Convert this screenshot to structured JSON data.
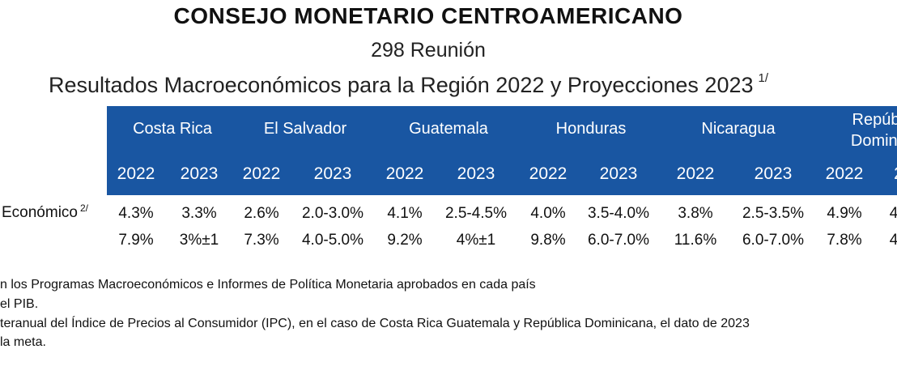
{
  "title": "CONSEJO MONETARIO CENTROAMERICANO",
  "subtitle": "298 Reunión",
  "subtitle2": "Resultados Macroeconómicos para la Región 2022 y Proyecciones 2023",
  "subtitle2_note": "1/",
  "countries": [
    "Costa Rica",
    "El Salvador",
    "Guatemala",
    "Honduras",
    "Nicaragua",
    "Repúb",
    "Domini"
  ],
  "years": [
    "2022",
    "2023",
    "2022",
    "2023",
    "2022",
    "2023",
    "2022",
    "2023",
    "2022",
    "2023",
    "2022",
    "2"
  ],
  "rows": [
    {
      "label": "Económico",
      "label_note": "2/",
      "values": [
        "4.3%",
        "3.3%",
        "2.6%",
        "2.0-3.0%",
        "4.1%",
        "2.5-4.5%",
        "4.0%",
        "3.5-4.0%",
        "3.8%",
        "2.5-3.5%",
        "4.9%",
        "4"
      ]
    },
    {
      "label": "",
      "label_note": "",
      "values": [
        "7.9%",
        "3%±1",
        "7.3%",
        "4.0-5.0%",
        "9.2%",
        "4%±1",
        "9.8%",
        "6.0-7.0%",
        "11.6%",
        "6.0-7.0%",
        "7.8%",
        "4"
      ]
    }
  ],
  "notes": [
    "n los Programas Macroeconómicos e Informes de Política Monetaria aprobados en cada país",
    "el PIB.",
    "teranual del Índice de Precios al Consumidor (IPC), en el caso de Costa Rica Guatemala y República Dominicana, el dato de 2023",
    " la meta."
  ]
}
